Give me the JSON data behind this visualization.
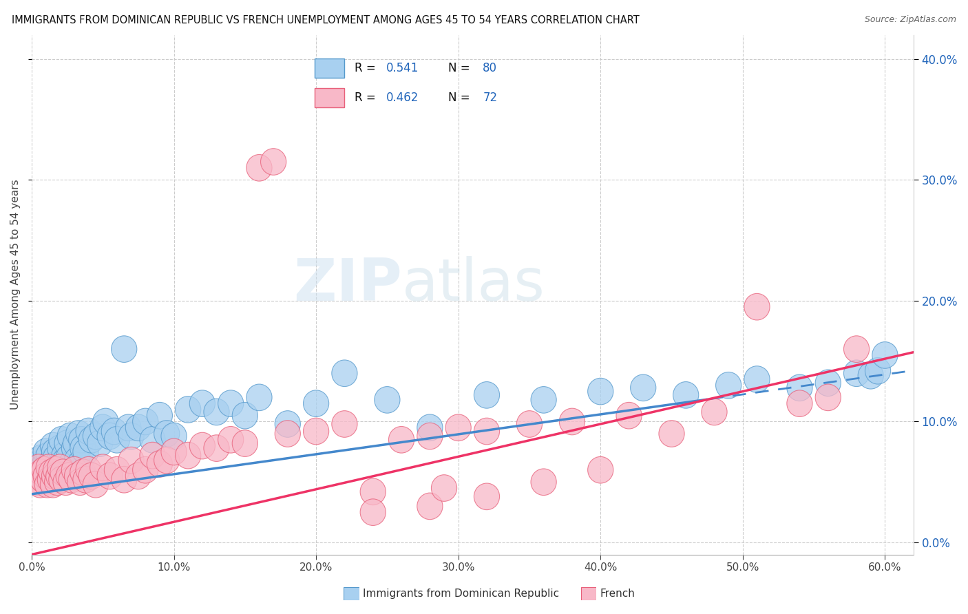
{
  "title": "IMMIGRANTS FROM DOMINICAN REPUBLIC VS FRENCH UNEMPLOYMENT AMONG AGES 45 TO 54 YEARS CORRELATION CHART",
  "source": "Source: ZipAtlas.com",
  "ylabel": "Unemployment Among Ages 45 to 54 years",
  "xlim": [
    0.0,
    0.62
  ],
  "ylim": [
    -0.01,
    0.42
  ],
  "xticks": [
    0.0,
    0.1,
    0.2,
    0.3,
    0.4,
    0.5,
    0.6
  ],
  "yticks": [
    0.0,
    0.1,
    0.2,
    0.3,
    0.4
  ],
  "color_blue": "#a8d0f0",
  "color_pink": "#f8b8c8",
  "color_blue_edge": "#5599cc",
  "color_pink_edge": "#e8607a",
  "color_blue_line": "#4488cc",
  "color_pink_line": "#ee3366",
  "color_text_blue": "#2266bb",
  "color_text_dark": "#222222",
  "watermark_zip": "ZIP",
  "watermark_atlas": "atlas",
  "legend_items": [
    {
      "r": "0.541",
      "n": "80"
    },
    {
      "r": "0.462",
      "n": "72"
    }
  ],
  "blue_intercept": 0.04,
  "blue_slope": 0.165,
  "pink_intercept": -0.01,
  "pink_slope": 0.27,
  "blue_scatter_x": [
    0.002,
    0.004,
    0.005,
    0.006,
    0.007,
    0.008,
    0.009,
    0.01,
    0.01,
    0.011,
    0.012,
    0.013,
    0.014,
    0.015,
    0.015,
    0.016,
    0.016,
    0.017,
    0.018,
    0.019,
    0.02,
    0.021,
    0.021,
    0.022,
    0.023,
    0.024,
    0.025,
    0.026,
    0.027,
    0.028,
    0.03,
    0.031,
    0.032,
    0.033,
    0.034,
    0.035,
    0.036,
    0.038,
    0.04,
    0.042,
    0.045,
    0.048,
    0.05,
    0.052,
    0.055,
    0.058,
    0.06,
    0.065,
    0.068,
    0.07,
    0.075,
    0.08,
    0.085,
    0.09,
    0.095,
    0.1,
    0.11,
    0.12,
    0.13,
    0.14,
    0.15,
    0.16,
    0.18,
    0.2,
    0.22,
    0.25,
    0.28,
    0.32,
    0.36,
    0.4,
    0.43,
    0.46,
    0.49,
    0.51,
    0.54,
    0.56,
    0.58,
    0.59,
    0.595,
    0.6
  ],
  "blue_scatter_y": [
    0.055,
    0.06,
    0.065,
    0.058,
    0.07,
    0.062,
    0.055,
    0.068,
    0.075,
    0.06,
    0.072,
    0.065,
    0.058,
    0.08,
    0.068,
    0.062,
    0.075,
    0.07,
    0.065,
    0.058,
    0.078,
    0.065,
    0.085,
    0.06,
    0.072,
    0.068,
    0.082,
    0.07,
    0.088,
    0.065,
    0.078,
    0.082,
    0.068,
    0.09,
    0.065,
    0.085,
    0.078,
    0.075,
    0.092,
    0.085,
    0.088,
    0.082,
    0.095,
    0.1,
    0.088,
    0.092,
    0.085,
    0.16,
    0.095,
    0.088,
    0.095,
    0.1,
    0.085,
    0.105,
    0.09,
    0.088,
    0.11,
    0.115,
    0.108,
    0.115,
    0.105,
    0.12,
    0.098,
    0.115,
    0.14,
    0.118,
    0.095,
    0.122,
    0.118,
    0.125,
    0.128,
    0.122,
    0.13,
    0.135,
    0.128,
    0.132,
    0.14,
    0.138,
    0.142,
    0.155
  ],
  "pink_scatter_x": [
    0.003,
    0.004,
    0.005,
    0.006,
    0.007,
    0.008,
    0.009,
    0.01,
    0.011,
    0.012,
    0.013,
    0.014,
    0.015,
    0.016,
    0.017,
    0.018,
    0.019,
    0.02,
    0.021,
    0.022,
    0.024,
    0.026,
    0.028,
    0.03,
    0.032,
    0.034,
    0.036,
    0.038,
    0.04,
    0.042,
    0.045,
    0.05,
    0.055,
    0.06,
    0.065,
    0.07,
    0.075,
    0.08,
    0.085,
    0.09,
    0.095,
    0.1,
    0.11,
    0.12,
    0.13,
    0.14,
    0.15,
    0.16,
    0.17,
    0.18,
    0.2,
    0.22,
    0.24,
    0.26,
    0.28,
    0.3,
    0.32,
    0.35,
    0.38,
    0.42,
    0.45,
    0.48,
    0.51,
    0.54,
    0.56,
    0.58,
    0.24,
    0.28,
    0.29,
    0.32,
    0.36,
    0.4
  ],
  "pink_scatter_y": [
    0.055,
    0.05,
    0.062,
    0.048,
    0.058,
    0.052,
    0.06,
    0.055,
    0.048,
    0.062,
    0.052,
    0.058,
    0.048,
    0.055,
    0.06,
    0.05,
    0.055,
    0.062,
    0.052,
    0.058,
    0.05,
    0.055,
    0.052,
    0.06,
    0.055,
    0.05,
    0.058,
    0.052,
    0.06,
    0.055,
    0.048,
    0.062,
    0.055,
    0.06,
    0.052,
    0.068,
    0.055,
    0.06,
    0.072,
    0.065,
    0.068,
    0.075,
    0.072,
    0.08,
    0.078,
    0.085,
    0.082,
    0.31,
    0.315,
    0.09,
    0.092,
    0.098,
    0.042,
    0.085,
    0.088,
    0.095,
    0.092,
    0.098,
    0.1,
    0.105,
    0.09,
    0.108,
    0.195,
    0.115,
    0.12,
    0.16,
    0.025,
    0.03,
    0.045,
    0.038,
    0.05,
    0.06
  ]
}
